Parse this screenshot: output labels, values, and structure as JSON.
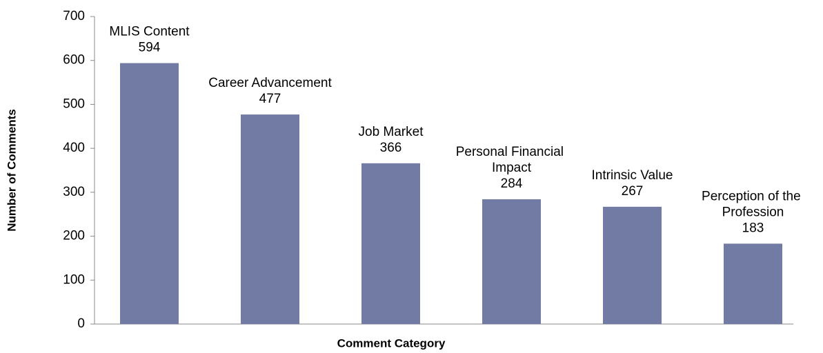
{
  "chart_data": {
    "type": "bar",
    "x_label": "Comment Category",
    "y_label": "Number of Comments",
    "categories": [
      "MLIS Content",
      "Career Advancement",
      "Job Market",
      "Personal Financial Impact",
      "Intrinsic Value",
      "Perception of the Profession"
    ],
    "values": [
      594,
      477,
      366,
      284,
      267,
      183
    ],
    "color": "#717ba3",
    "ylim": [
      0,
      700
    ],
    "yticks": [
      0,
      100,
      200,
      300,
      400,
      500,
      600,
      700
    ],
    "grid": false
  }
}
